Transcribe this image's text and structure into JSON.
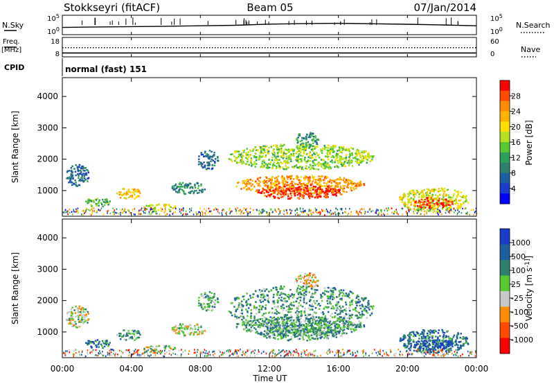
{
  "header": {
    "station": "Stokkseyri (fitACF)",
    "beam": "Beam 05",
    "date": "07/Jan/2014"
  },
  "side_labels": {
    "nsky": "N.Sky",
    "nsearch": "N.Search",
    "freq": "Freq.",
    "freq_unit": "[MHz]",
    "nave": "Nave",
    "cpid": "CPID",
    "cpid_value": "normal (fast) 151"
  },
  "chart_data": [
    {
      "type": "line",
      "name": "noise",
      "left_ticks": [
        "10^5",
        "10^0"
      ],
      "right_ticks": [
        "10^5",
        "10^0"
      ],
      "series": [
        {
          "name": "N.Sky",
          "style": "solid",
          "x": [
            0,
            2,
            4,
            6,
            8,
            10,
            12,
            14,
            16,
            18,
            20,
            22,
            24
          ],
          "y": [
            0.35,
            0.38,
            0.4,
            0.42,
            0.45,
            0.48,
            0.55,
            0.58,
            0.6,
            0.57,
            0.54,
            0.5,
            0.45
          ]
        },
        {
          "name": "N.Search",
          "style": "dotted",
          "x": [],
          "y": []
        }
      ]
    },
    {
      "type": "line",
      "name": "frequency",
      "left_ticks": [
        "18",
        "8"
      ],
      "right_ticks": [
        "60",
        "0"
      ],
      "series": [
        {
          "name": "Freq.",
          "style": "solid",
          "value": 10.0
        },
        {
          "name": "Nave",
          "style": "dotted",
          "value": 24
        }
      ]
    },
    {
      "type": "heatmap",
      "name": "power",
      "ylabel": "Slant Range [km]",
      "yticks": [
        1000,
        2000,
        3000,
        4000
      ],
      "ylim": [
        180,
        4600
      ],
      "xlim": [
        0,
        24
      ],
      "colorbar": {
        "label": "Power [dB]",
        "ticks": [
          "28",
          "24",
          "20",
          "16",
          "12",
          "8",
          "4"
        ],
        "colors": [
          "#ff0000",
          "#ff4a00",
          "#ff8c00",
          "#ffb400",
          "#ffdd00",
          "#b4e01e",
          "#55c832",
          "#2e9e5b",
          "#2f7f6f",
          "#1d5fa0",
          "#1a3cc8",
          "#0000ff"
        ]
      },
      "regions": [
        {
          "t0": 0.2,
          "t1": 1.5,
          "r0": 1150,
          "r1": 1850,
          "level": 2
        },
        {
          "t0": 1.2,
          "t1": 2.8,
          "r0": 500,
          "r1": 800,
          "level": 4
        },
        {
          "t0": 3.1,
          "t1": 4.6,
          "r0": 750,
          "r1": 1100,
          "level": 7
        },
        {
          "t0": 4.7,
          "t1": 6.6,
          "r0": 350,
          "r1": 600,
          "level": 6
        },
        {
          "t0": 6.3,
          "t1": 8.3,
          "r0": 900,
          "r1": 1300,
          "level": 3
        },
        {
          "t0": 7.8,
          "t1": 9.0,
          "r0": 1700,
          "r1": 2300,
          "level": 2
        },
        {
          "t0": 9.6,
          "t1": 18.0,
          "r0": 1700,
          "r1": 2500,
          "level": 5
        },
        {
          "t0": 10.0,
          "t1": 17.5,
          "r0": 900,
          "r1": 1500,
          "level": 8
        },
        {
          "t0": 11.3,
          "t1": 16.2,
          "r0": 750,
          "r1": 1200,
          "level": 10
        },
        {
          "t0": 13.5,
          "t1": 14.8,
          "r0": 2400,
          "r1": 2900,
          "level": 3
        },
        {
          "t0": 19.5,
          "t1": 23.5,
          "r0": 350,
          "r1": 1100,
          "level": 6
        },
        {
          "t0": 20.3,
          "t1": 22.6,
          "r0": 450,
          "r1": 800,
          "level": 10
        }
      ]
    },
    {
      "type": "heatmap",
      "name": "velocity",
      "ylabel": "Slant Range [km]",
      "yticks": [
        1000,
        2000,
        3000,
        4000
      ],
      "ylim": [
        180,
        4600
      ],
      "xlim": [
        0,
        24
      ],
      "xticks": [
        "00:00",
        "04:00",
        "08:00",
        "12:00",
        "16:00",
        "20:00",
        "00:00"
      ],
      "xlabel": "Time UT",
      "colorbar": {
        "label": "Velocity [m s^-1]",
        "ticks": [
          "1000",
          "500",
          "100",
          "25",
          "-25",
          "-100",
          "-500",
          "-1000"
        ],
        "colors": [
          "#1a3cc8",
          "#1d5fa0",
          "#2f7f6f",
          "#55c832",
          "#c8c8c8",
          "#ff8c00",
          "#ff4a00",
          "#ff0000"
        ]
      },
      "regions": [
        {
          "t0": 0.2,
          "t1": 1.5,
          "r0": 1150,
          "r1": 1850,
          "level": 3
        },
        {
          "t0": 1.2,
          "t1": 2.8,
          "r0": 500,
          "r1": 800,
          "level": 5
        },
        {
          "t0": 3.1,
          "t1": 4.6,
          "r0": 750,
          "r1": 1100,
          "level": 4
        },
        {
          "t0": 4.7,
          "t1": 6.6,
          "r0": 350,
          "r1": 600,
          "level": 3
        },
        {
          "t0": 6.3,
          "t1": 8.3,
          "r0": 900,
          "r1": 1300,
          "level": 3
        },
        {
          "t0": 7.8,
          "t1": 9.0,
          "r0": 1700,
          "r1": 2300,
          "level": 4
        },
        {
          "t0": 9.6,
          "t1": 18.0,
          "r0": 1100,
          "r1": 2500,
          "level": 4
        },
        {
          "t0": 10.0,
          "t1": 17.5,
          "r0": 900,
          "r1": 1500,
          "level": 4
        },
        {
          "t0": 11.3,
          "t1": 16.2,
          "r0": 750,
          "r1": 1200,
          "level": 4
        },
        {
          "t0": 13.5,
          "t1": 14.8,
          "r0": 2400,
          "r1": 2900,
          "level": 2
        },
        {
          "t0": 19.5,
          "t1": 23.5,
          "r0": 350,
          "r1": 1100,
          "level": 5
        },
        {
          "t0": 20.3,
          "t1": 22.6,
          "r0": 450,
          "r1": 800,
          "level": 6
        }
      ]
    }
  ]
}
